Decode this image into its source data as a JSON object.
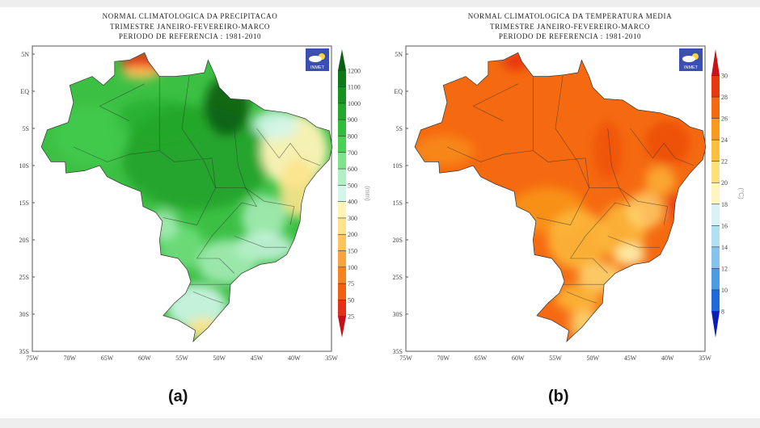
{
  "panels": [
    {
      "title_lines": [
        "NORMAL CLIMATOLOGICA DA PRECIPITACAO",
        "TRIMESTRE JANEIRO-FEVEREIRO-MARCO",
        "PERIODO DE REFERENCIA : 1981-2010"
      ],
      "caption": "(a)",
      "logo": "INMET",
      "unit": "(mm)",
      "colorbar_labels": [
        "1200",
        "1100",
        "1000",
        "900",
        "800",
        "700",
        "600",
        "500",
        "400",
        "300",
        "200",
        "150",
        "100",
        "75",
        "50",
        "25"
      ],
      "colorbar_colors": [
        "#0b5e12",
        "#107a1a",
        "#18921f",
        "#22a82a",
        "#2fbe38",
        "#48d154",
        "#7ee48a",
        "#b1f0c3",
        "#d2f6ea",
        "#fff3b8",
        "#fde38c",
        "#fbc45c",
        "#f8a43a",
        "#f58420",
        "#f25e12",
        "#e53018",
        "#c4101a"
      ],
      "lat_labels": [
        "5N",
        "EQ",
        "5S",
        "10S",
        "15S",
        "20S",
        "25S",
        "30S",
        "35S"
      ],
      "lon_labels": [
        "75W",
        "70W",
        "65W",
        "60W",
        "55W",
        "50W",
        "45W",
        "40W",
        "35W"
      ]
    },
    {
      "title_lines": [
        "NORMAL CLIMATOLOGICA DA TEMPERATURA MEDIA",
        "TRIMESTRE JANEIRO-FEVEREIRO-MARCO",
        "PERIODO DE REFERENCIA : 1981-2010"
      ],
      "caption": "(b)",
      "logo": "INMET",
      "unit": "(°C)",
      "colorbar_labels": [
        "30",
        "28",
        "26",
        "24",
        "22",
        "20",
        "18",
        "16",
        "14",
        "12",
        "10",
        "8"
      ],
      "colorbar_colors": [
        "#c81414",
        "#e8380c",
        "#f56a10",
        "#f99a1a",
        "#fcbf3e",
        "#fde07a",
        "#fdf7bd",
        "#d8f2f8",
        "#b0e0f2",
        "#84c4ec",
        "#4c9ce4",
        "#1f6ad8",
        "#0a1fb8"
      ],
      "lat_labels": [
        "5N",
        "EQ",
        "5S",
        "10S",
        "15S",
        "20S",
        "25S",
        "30S",
        "35S"
      ],
      "lon_labels": [
        "75W",
        "70W",
        "65W",
        "60W",
        "55W",
        "50W",
        "45W",
        "40W",
        "35W"
      ]
    }
  ]
}
